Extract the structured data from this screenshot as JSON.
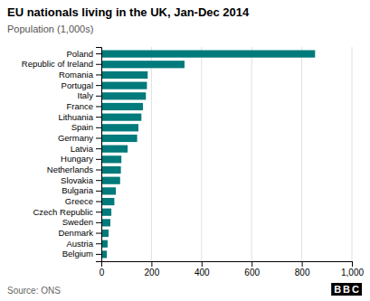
{
  "chart_data": {
    "type": "bar",
    "orientation": "horizontal",
    "title": "EU nationals living in the UK, Jan-Dec 2014",
    "subtitle": "Population (1,000s)",
    "annotations": [
      "Source: ONS",
      "BBC"
    ],
    "categories": [
      "Poland",
      "Republic of Ireland",
      "Romania",
      "Portugal",
      "Italy",
      "France",
      "Lithuania",
      "Spain",
      "Germany",
      "Latvia",
      "Hungary",
      "Netherlands",
      "Slovakia",
      "Bulgaria",
      "Greece",
      "Czech Republic",
      "Sweden",
      "Denmark",
      "Austria",
      "Belgium"
    ],
    "values": [
      853,
      332,
      185,
      182,
      178,
      166,
      160,
      148,
      143,
      105,
      80,
      78,
      75,
      58,
      52,
      40,
      36,
      29,
      25,
      22
    ],
    "color": "#007a7a",
    "xlim": [
      0,
      1000
    ],
    "xticks": [
      0,
      200,
      400,
      600,
      800,
      {
        "value": 1000,
        "label": "1,000"
      }
    ],
    "grid": true
  }
}
